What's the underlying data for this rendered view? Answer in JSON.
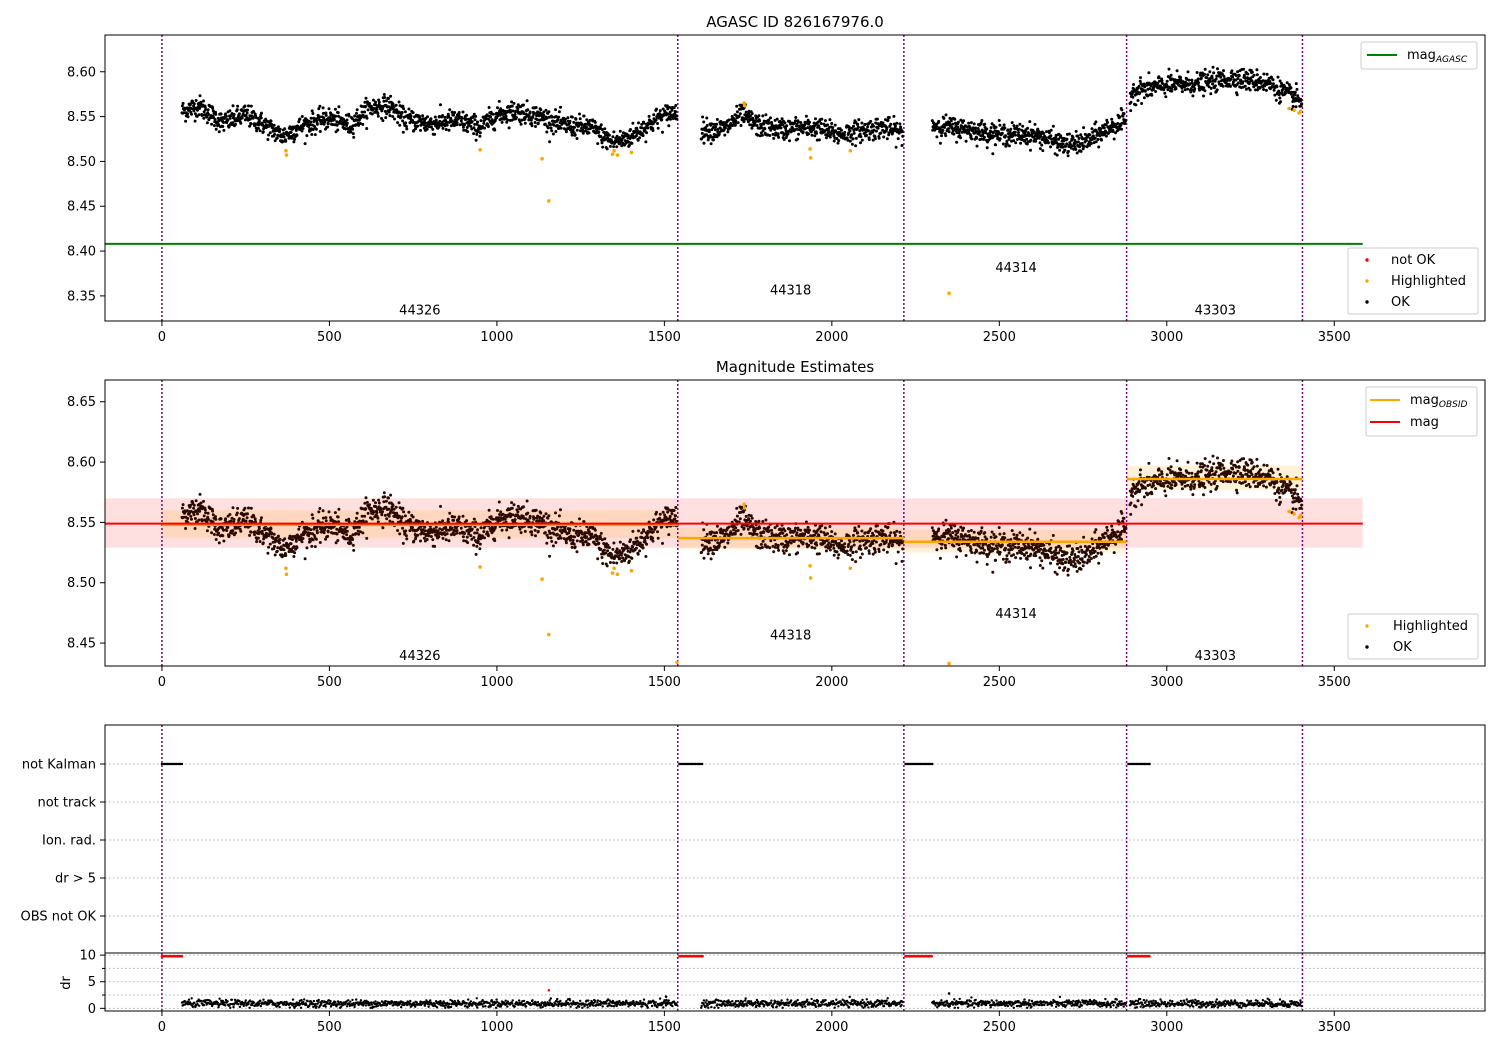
{
  "chart_data": [
    {
      "type": "scatter",
      "title": "AGASC ID 826167976.0",
      "xlim": [
        -170,
        3950
      ],
      "ylim": [
        8.322,
        8.641
      ],
      "yticks": [
        8.35,
        8.4,
        8.45,
        8.5,
        8.55,
        8.6
      ],
      "xticks": [
        0,
        500,
        1000,
        1500,
        2000,
        2500,
        3000,
        3500
      ],
      "obsid_boundaries": [
        0,
        1540,
        2215,
        2880,
        3405
      ],
      "obsid_labels": [
        {
          "text": "44326",
          "x": 770,
          "y": 8.335
        },
        {
          "text": "44318",
          "x": 1877,
          "y": 8.357
        },
        {
          "text": "44314",
          "x": 2550,
          "y": 8.382
        },
        {
          "text": "43303",
          "x": 3145,
          "y": 8.335
        }
      ],
      "agasc_mag": {
        "value": 8.408,
        "x_range": [
          -170,
          3585
        ],
        "color": "#008000"
      },
      "legend_top": [
        {
          "label": "mag",
          "sub": "AGASC",
          "color": "#008000"
        }
      ],
      "legend_bottom": [
        {
          "label": "not OK",
          "color": "#ff0000"
        },
        {
          "label": "Highlighted",
          "color": "#ffa500"
        },
        {
          "label": "OK",
          "color": "#000000"
        }
      ],
      "highlighted_points": [
        [
          370,
          8.512
        ],
        [
          372,
          8.507
        ],
        [
          950,
          8.513
        ],
        [
          1135,
          8.503
        ],
        [
          1155,
          8.456
        ],
        [
          1345,
          8.508
        ],
        [
          1350,
          8.512
        ],
        [
          1360,
          8.507
        ],
        [
          1402,
          8.51
        ],
        [
          1738,
          8.565
        ],
        [
          1740,
          8.562
        ],
        [
          1935,
          8.514
        ],
        [
          1937,
          8.504
        ],
        [
          2055,
          8.512
        ],
        [
          2350,
          8.353
        ],
        [
          3365,
          8.559
        ],
        [
          3380,
          8.557
        ],
        [
          3395,
          8.554
        ],
        [
          3400,
          8.556
        ]
      ]
    },
    {
      "type": "scatter",
      "title": "Magnitude Estimates",
      "xlim": [
        -170,
        3950
      ],
      "ylim": [
        8.431,
        8.668
      ],
      "yticks": [
        8.45,
        8.5,
        8.55,
        8.6,
        8.65
      ],
      "xticks": [
        0,
        500,
        1000,
        1500,
        2000,
        2500,
        3000,
        3500
      ],
      "obsid_labels": [
        {
          "text": "44326",
          "x": 770,
          "y": 8.44
        },
        {
          "text": "44318",
          "x": 1877,
          "y": 8.457
        },
        {
          "text": "44314",
          "x": 2550,
          "y": 8.475
        },
        {
          "text": "43303",
          "x": 3145,
          "y": 8.44
        }
      ],
      "mean_mag": {
        "value": 8.549,
        "band": [
          8.529,
          8.57
        ],
        "x_range": [
          -170,
          3585
        ],
        "color": "#ff0000"
      },
      "obsid_mags": [
        {
          "x_range": [
            0,
            1540
          ],
          "value": 8.548,
          "band": [
            8.537,
            8.56
          ]
        },
        {
          "x_range": [
            1540,
            2215
          ],
          "value": 8.537,
          "band": [
            8.528,
            8.546
          ]
        },
        {
          "x_range": [
            2215,
            2880
          ],
          "value": 8.534,
          "band": [
            8.525,
            8.544
          ]
        },
        {
          "x_range": [
            2880,
            3405
          ],
          "value": 8.586,
          "band": [
            8.577,
            8.597
          ]
        }
      ],
      "legend_top": [
        {
          "label": "mag",
          "sub": "OBSID",
          "color": "#ffa500"
        },
        {
          "label": "mag",
          "sub": "",
          "color": "#ff0000"
        }
      ],
      "legend_bottom": [
        {
          "label": "Highlighted",
          "color": "#ffa500"
        },
        {
          "label": "OK",
          "color": "#000000"
        }
      ],
      "highlighted_points": [
        [
          370,
          8.512
        ],
        [
          372,
          8.507
        ],
        [
          950,
          8.513
        ],
        [
          1135,
          8.503
        ],
        [
          1155,
          8.457
        ],
        [
          1345,
          8.508
        ],
        [
          1350,
          8.512
        ],
        [
          1360,
          8.507
        ],
        [
          1402,
          8.51
        ],
        [
          1538,
          8.434
        ],
        [
          1738,
          8.565
        ],
        [
          1740,
          8.562
        ],
        [
          1935,
          8.514
        ],
        [
          1937,
          8.504
        ],
        [
          2055,
          8.512
        ],
        [
          2350,
          8.433
        ],
        [
          3365,
          8.559
        ],
        [
          3380,
          8.557
        ],
        [
          3395,
          8.554
        ],
        [
          3400,
          8.556
        ]
      ]
    },
    {
      "type": "scatter",
      "title": "",
      "categories": [
        "not Kalman",
        "not track",
        "Ion. rad.",
        "dr > 5",
        "OBS not OK"
      ],
      "flag_segments": [
        {
          "category": "not Kalman",
          "x_range": [
            0,
            60
          ]
        },
        {
          "category": "not Kalman",
          "x_range": [
            1545,
            1615
          ]
        },
        {
          "category": "not Kalman",
          "x_range": [
            2220,
            2300
          ]
        },
        {
          "category": "not Kalman",
          "x_range": [
            2885,
            2950
          ]
        }
      ],
      "xlim": [
        -170,
        3950
      ],
      "xticks": [
        0,
        500,
        1000,
        1500,
        2000,
        2500,
        3000,
        3500
      ]
    },
    {
      "type": "scatter",
      "title": "",
      "ylabel": "dr",
      "ylim": [
        -0.5,
        10.4
      ],
      "yticks": [
        0,
        5,
        10
      ],
      "xlim": [
        -170,
        3950
      ],
      "xticks": [
        0,
        500,
        1000,
        1500,
        2000,
        2500,
        3000,
        3500
      ],
      "red_segments": [
        {
          "x_range": [
            0,
            60
          ],
          "value": 9.8
        },
        {
          "x_range": [
            1545,
            1615
          ],
          "value": 9.8
        },
        {
          "x_range": [
            2220,
            2300
          ],
          "value": 9.8
        },
        {
          "x_range": [
            2885,
            2950
          ],
          "value": 9.8
        }
      ],
      "outliers": [
        [
          1155,
          3.4,
          "#ff0000"
        ],
        [
          1505,
          2.2,
          "#000000"
        ],
        [
          2350,
          2.8,
          "#000000"
        ]
      ]
    }
  ],
  "colors": {
    "ok": "#000000",
    "highlighted": "#ffa500",
    "not_ok": "#ff0000",
    "boundary": "#800080",
    "mag_obsid": "#ffa500",
    "mag": "#ff0000",
    "agasc": "#008000"
  }
}
